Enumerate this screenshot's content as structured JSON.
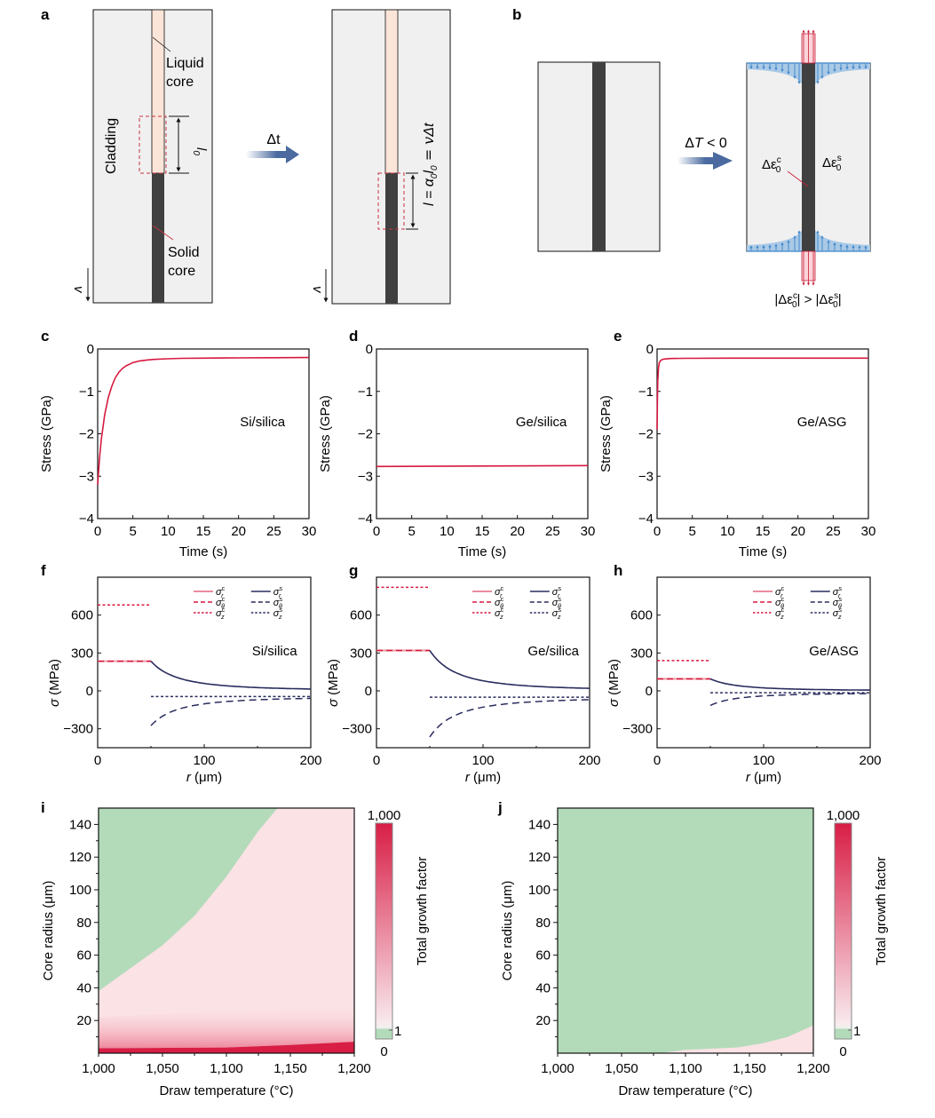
{
  "panels": {
    "a": {
      "letter": "a",
      "cladding_label": "Cladding",
      "liquid_core_label": [
        "Liquid",
        "core"
      ],
      "solid_core_label": [
        "Solid",
        "core"
      ],
      "initial_length_label": "l",
      "initial_length_sub": "0",
      "arrow_label": "Δt",
      "velocity_label": "v",
      "growth_equation": "l = α",
      "growth_equation_parts": [
        "l = α",
        "0",
        "l",
        "0",
        " = vΔt"
      ]
    },
    "b": {
      "letter": "b",
      "arrow_label": "ΔT < 0",
      "core_strain_label": "Δε",
      "core_strain_sup": "c",
      "core_strain_sub": "0",
      "shell_strain_label": "Δε",
      "shell_strain_sup": "s",
      "shell_strain_sub": "0",
      "inequality": "|Δε₀ᶜ| > |Δε₀ˢ|"
    },
    "c": {
      "letter": "c"
    },
    "d": {
      "letter": "d"
    },
    "e": {
      "letter": "e"
    },
    "f": {
      "letter": "f"
    },
    "g": {
      "letter": "g"
    },
    "h": {
      "letter": "h"
    },
    "i": {
      "letter": "i"
    },
    "j": {
      "letter": "j"
    }
  },
  "colors": {
    "core_red": "#d6193f",
    "shell_navy": "#2a2d5e",
    "cladding_gray": "#f0f0f0",
    "solid_core": "#404040",
    "liquid_core": "#fbe4d8",
    "arrow_blue": "#4a6aa0",
    "strain_blue": "#3a83c9",
    "strain_fill": "#a9c9e6",
    "heat_green": "#b3dbba",
    "heat_pink": "#fbe2e5",
    "heat_red": "#d81e45"
  },
  "chart_data": [
    {
      "id": "c",
      "type": "line",
      "title": "",
      "annotation": "Si/silica",
      "xlabel": "Time (s)",
      "ylabel": "Stress (GPa)",
      "xlim": [
        0,
        30
      ],
      "ylim": [
        -4,
        0
      ],
      "xticks": [
        0,
        5,
        10,
        15,
        20,
        25,
        30
      ],
      "yticks": [
        0,
        -1,
        -2,
        -3,
        -4
      ],
      "ytick_labels": [
        "0",
        "−1",
        "−2",
        "−3",
        "−4"
      ],
      "series": [
        {
          "name": "stress",
          "x": [
            0,
            0.25,
            0.5,
            1,
            1.5,
            2,
            2.5,
            3,
            3.5,
            4,
            5,
            6,
            7,
            8,
            10,
            12,
            15,
            20,
            25,
            30
          ],
          "y": [
            -3.2,
            -2.6,
            -2.15,
            -1.55,
            -1.15,
            -0.88,
            -0.68,
            -0.55,
            -0.46,
            -0.4,
            -0.32,
            -0.28,
            -0.26,
            -0.245,
            -0.23,
            -0.22,
            -0.215,
            -0.21,
            -0.205,
            -0.2
          ]
        }
      ]
    },
    {
      "id": "d",
      "type": "line",
      "annotation": "Ge/silica",
      "xlabel": "Time (s)",
      "ylabel": "Stress (GPa)",
      "xlim": [
        0,
        30
      ],
      "ylim": [
        -4,
        0
      ],
      "xticks": [
        0,
        5,
        10,
        15,
        20,
        25,
        30
      ],
      "yticks": [
        0,
        -1,
        -2,
        -3,
        -4
      ],
      "ytick_labels": [
        "0",
        "−1",
        "−2",
        "−3",
        "−4"
      ],
      "series": [
        {
          "name": "stress",
          "x": [
            0,
            30
          ],
          "y": [
            -2.77,
            -2.75
          ]
        }
      ]
    },
    {
      "id": "e",
      "type": "line",
      "annotation": "Ge/ASG",
      "xlabel": "Time (s)",
      "ylabel": "Stress (GPa)",
      "xlim": [
        0,
        30
      ],
      "ylim": [
        -4,
        0
      ],
      "xticks": [
        0,
        5,
        10,
        15,
        20,
        25,
        30
      ],
      "yticks": [
        0,
        -1,
        -2,
        -3,
        -4
      ],
      "ytick_labels": [
        "0",
        "−1",
        "−2",
        "−3",
        "−4"
      ],
      "series": [
        {
          "name": "stress",
          "x": [
            0,
            0.05,
            0.1,
            0.2,
            0.3,
            0.5,
            0.8,
            1.2,
            2,
            4,
            10,
            30
          ],
          "y": [
            -1.9,
            -1.2,
            -0.75,
            -0.45,
            -0.33,
            -0.27,
            -0.245,
            -0.235,
            -0.225,
            -0.22,
            -0.215,
            -0.215
          ]
        }
      ]
    },
    {
      "id": "f",
      "type": "line",
      "annotation": "Si/silica",
      "xlabel": "r (μm)",
      "ylabel": "σ (MPa)",
      "xlim": [
        0,
        200
      ],
      "ylim": [
        -450,
        900
      ],
      "xticks": [
        0,
        100,
        200
      ],
      "yticks": [
        600,
        300,
        0,
        -300
      ],
      "ytick_labels": [
        "600",
        "300",
        "0",
        "−300"
      ],
      "core_radius": 50,
      "legend": [
        {
          "label": "σ",
          "sup": "c",
          "sub": "r",
          "color": "#d6193f",
          "dash": "solid"
        },
        {
          "label": "σ",
          "sup": "c",
          "sub": "θ",
          "color": "#d6193f",
          "dash": "dashed"
        },
        {
          "label": "σ",
          "sup": "c",
          "sub": "z",
          "color": "#d6193f",
          "dash": "dotted"
        },
        {
          "label": "σ",
          "sup": "s",
          "sub": "r",
          "color": "#2a2d5e",
          "dash": "solid"
        },
        {
          "label": "σ",
          "sup": "s",
          "sub": "θ",
          "color": "#2a2d5e",
          "dash": "dashed"
        },
        {
          "label": "σ",
          "sup": "s",
          "sub": "z",
          "color": "#2a2d5e",
          "dash": "dotted"
        }
      ],
      "core": {
        "sigma_r": 235,
        "sigma_theta": 235,
        "sigma_z": 680
      },
      "shell": {
        "sigma_r_at_core": 235,
        "sigma_theta_at_core": -275,
        "sigma_z": -45
      }
    },
    {
      "id": "g",
      "type": "line",
      "annotation": "Ge/silica",
      "xlabel": "r (μm)",
      "ylabel": "σ (MPa)",
      "xlim": [
        0,
        200
      ],
      "ylim": [
        -450,
        900
      ],
      "xticks": [
        0,
        100,
        200
      ],
      "yticks": [
        600,
        300,
        0,
        -300
      ],
      "ytick_labels": [
        "600",
        "300",
        "0",
        "−300"
      ],
      "core_radius": 50,
      "legend": [
        {
          "label": "σ",
          "sup": "c",
          "sub": "r",
          "color": "#d6193f",
          "dash": "solid"
        },
        {
          "label": "σ",
          "sup": "c",
          "sub": "θ",
          "color": "#d6193f",
          "dash": "dashed"
        },
        {
          "label": "σ",
          "sup": "c",
          "sub": "z",
          "color": "#d6193f",
          "dash": "dotted"
        },
        {
          "label": "σ",
          "sup": "s",
          "sub": "r",
          "color": "#2a2d5e",
          "dash": "solid"
        },
        {
          "label": "σ",
          "sup": "s",
          "sub": "θ",
          "color": "#2a2d5e",
          "dash": "dashed"
        },
        {
          "label": "σ",
          "sup": "s",
          "sub": "z",
          "color": "#2a2d5e",
          "dash": "dotted"
        }
      ],
      "core": {
        "sigma_r": 320,
        "sigma_theta": 320,
        "sigma_z": 820
      },
      "shell": {
        "sigma_r_at_core": 320,
        "sigma_theta_at_core": -365,
        "sigma_z": -50
      }
    },
    {
      "id": "h",
      "type": "line",
      "annotation": "Ge/ASG",
      "xlabel": "r (μm)",
      "ylabel": "σ (MPa)",
      "xlim": [
        0,
        200
      ],
      "ylim": [
        -450,
        900
      ],
      "xticks": [
        0,
        100,
        200
      ],
      "yticks": [
        600,
        300,
        0,
        -300
      ],
      "ytick_labels": [
        "600",
        "300",
        "0",
        "−300"
      ],
      "core_radius": 50,
      "legend": [
        {
          "label": "σ",
          "sup": "c",
          "sub": "r",
          "color": "#d6193f",
          "dash": "solid"
        },
        {
          "label": "σ",
          "sup": "c",
          "sub": "θ",
          "color": "#d6193f",
          "dash": "dashed"
        },
        {
          "label": "σ",
          "sup": "c",
          "sub": "z",
          "color": "#d6193f",
          "dash": "dotted"
        },
        {
          "label": "σ",
          "sup": "s",
          "sub": "r",
          "color": "#2a2d5e",
          "dash": "solid"
        },
        {
          "label": "σ",
          "sup": "s",
          "sub": "θ",
          "color": "#2a2d5e",
          "dash": "dashed"
        },
        {
          "label": "σ",
          "sup": "s",
          "sub": "z",
          "color": "#2a2d5e",
          "dash": "dotted"
        }
      ],
      "core": {
        "sigma_r": 95,
        "sigma_theta": 95,
        "sigma_z": 240
      },
      "shell": {
        "sigma_r_at_core": 95,
        "sigma_theta_at_core": -115,
        "sigma_z": -15
      }
    },
    {
      "id": "i",
      "type": "heatmap",
      "xlabel": "Draw temperature (°C)",
      "ylabel": "Core radius (μm)",
      "xlim": [
        1000,
        1200
      ],
      "ylim": [
        0,
        150
      ],
      "xticks": [
        1000,
        1050,
        1100,
        1150,
        1200
      ],
      "xtick_labels": [
        "1,000",
        "1,050",
        "1,100",
        "1,150",
        "1,200"
      ],
      "yticks": [
        20,
        40,
        60,
        80,
        100,
        120,
        140
      ],
      "colorbar": {
        "label": "Total growth factor",
        "max_label": "1,000",
        "one_label": "1",
        "min_label": "0",
        "range": [
          0,
          1000
        ]
      },
      "green_boundary": {
        "x": [
          1000,
          1025,
          1050,
          1075,
          1100,
          1125,
          1140
        ],
        "y": [
          38,
          52,
          66,
          84,
          108,
          136,
          150
        ]
      },
      "red_band_top": {
        "x": [
          1000,
          1100,
          1150,
          1200
        ],
        "y": [
          3,
          3.5,
          5,
          7
        ]
      }
    },
    {
      "id": "j",
      "type": "heatmap",
      "xlabel": "Draw temperature (°C)",
      "ylabel": "Core radius (μm)",
      "xlim": [
        1000,
        1200
      ],
      "ylim": [
        0,
        150
      ],
      "xticks": [
        1000,
        1050,
        1100,
        1150,
        1200
      ],
      "xtick_labels": [
        "1,000",
        "1,050",
        "1,100",
        "1,150",
        "1,200"
      ],
      "yticks": [
        20,
        40,
        60,
        80,
        100,
        120,
        140
      ],
      "colorbar": {
        "label": "Total growth factor",
        "max_label": "1,000",
        "one_label": "1",
        "min_label": "0",
        "range": [
          0,
          1000
        ]
      },
      "pink_boundary": {
        "x": [
          1080,
          1100,
          1140,
          1160,
          1180,
          1200
        ],
        "y": [
          0,
          2,
          3.5,
          6,
          10,
          17
        ]
      }
    }
  ]
}
